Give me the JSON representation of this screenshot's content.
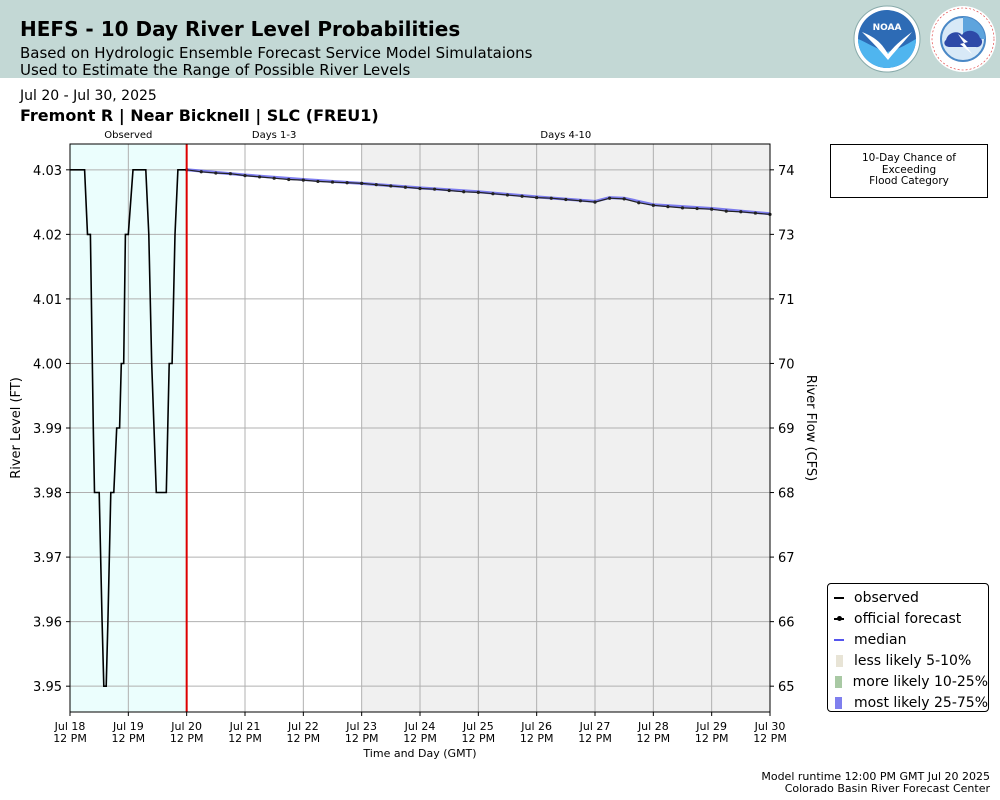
{
  "header": {
    "title": "HEFS - 10 Day River Level Probabilities",
    "subtitle_line1": "Based on Hydrologic Ensemble Forecast Service Model Simulataions",
    "subtitle_line2": "Used to Estimate the Range of Possible River Levels",
    "noaa_logo_text": "NOAA",
    "nws_logo_text": "NATIONAL WEATHER SERVICE"
  },
  "date_range": "Jul 20 - Jul 30, 2025",
  "station": "Fremont R | Near Bicknell | SLC (FREU1)",
  "chance_box": {
    "line1": "10-Day Chance of",
    "line2": "Exceeding",
    "line3": "Flood Category"
  },
  "footer": {
    "line1": "Model runtime 12:00 PM GMT Jul 20 2025",
    "line2": "Colorado Basin River Forecast Center"
  },
  "legend": [
    {
      "label": "observed",
      "color": "#000000",
      "kind": "line"
    },
    {
      "label": "official forecast",
      "color": "#000000",
      "kind": "line-dot"
    },
    {
      "label": "median",
      "color": "#5555ee",
      "kind": "line"
    },
    {
      "label": "less likely 5-10%",
      "color": "#e8e4d6",
      "kind": "patch"
    },
    {
      "label": "more likely 10-25%",
      "color": "#a9c9a4",
      "kind": "patch"
    },
    {
      "label": "most likely 25-75%",
      "color": "#7f7fee",
      "kind": "patch"
    }
  ],
  "colors": {
    "observed_bg": "#ebfefd",
    "days4_10_bg": "#f0f0f0",
    "now_line": "#dd0000",
    "grid": "#b0b0b0"
  },
  "chart_data": {
    "type": "line",
    "xlabel": "Time and Day (GMT)",
    "ylabel": "River Level (FT)",
    "y2label": "River Flow (CFS)",
    "x_range": [
      "2025-07-18 12:00",
      "2025-07-30 12:00"
    ],
    "ylim": [
      3.946,
      4.034
    ],
    "x_ticks": [
      {
        "day": "Jul 18",
        "time": "12 PM"
      },
      {
        "day": "Jul 19",
        "time": "12 PM"
      },
      {
        "day": "Jul 20",
        "time": "12 PM"
      },
      {
        "day": "Jul 21",
        "time": "12 PM"
      },
      {
        "day": "Jul 22",
        "time": "12 PM"
      },
      {
        "day": "Jul 23",
        "time": "12 PM"
      },
      {
        "day": "Jul 24",
        "time": "12 PM"
      },
      {
        "day": "Jul 25",
        "time": "12 PM"
      },
      {
        "day": "Jul 26",
        "time": "12 PM"
      },
      {
        "day": "Jul 27",
        "time": "12 PM"
      },
      {
        "day": "Jul 28",
        "time": "12 PM"
      },
      {
        "day": "Jul 29",
        "time": "12 PM"
      },
      {
        "day": "Jul 30",
        "time": "12 PM"
      }
    ],
    "y_ticks": [
      "3.95",
      "3.96",
      "3.97",
      "3.98",
      "3.99",
      "4.00",
      "4.01",
      "4.02",
      "4.03"
    ],
    "y2_ticks": [
      {
        "stage": 4.03,
        "label": "74"
      },
      {
        "stage": 4.02,
        "label": "73"
      },
      {
        "stage": 4.01,
        "label": "71"
      },
      {
        "stage": 4.0,
        "label": "70"
      },
      {
        "stage": 3.99,
        "label": "69"
      },
      {
        "stage": 3.98,
        "label": "68"
      },
      {
        "stage": 3.97,
        "label": "67"
      },
      {
        "stage": 3.96,
        "label": "66"
      },
      {
        "stage": 3.95,
        "label": "65"
      }
    ],
    "period_labels": [
      {
        "text": "Observed",
        "from": 0,
        "to": 2
      },
      {
        "text": "Days 1-3",
        "from": 2,
        "to": 5
      },
      {
        "text": "Days 4-10",
        "from": 5,
        "to": 12
      }
    ],
    "observed": [
      [
        0,
        4.03
      ],
      [
        0.25,
        4.03
      ],
      [
        0.3,
        4.02
      ],
      [
        0.35,
        4.02
      ],
      [
        0.4,
        3.99
      ],
      [
        0.42,
        3.98
      ],
      [
        0.5,
        3.98
      ],
      [
        0.55,
        3.96
      ],
      [
        0.58,
        3.95
      ],
      [
        0.62,
        3.95
      ],
      [
        0.65,
        3.96
      ],
      [
        0.7,
        3.98
      ],
      [
        0.75,
        3.98
      ],
      [
        0.8,
        3.99
      ],
      [
        0.85,
        3.99
      ],
      [
        0.88,
        4.0
      ],
      [
        0.92,
        4.0
      ],
      [
        0.95,
        4.02
      ],
      [
        1.0,
        4.02
      ],
      [
        1.08,
        4.03
      ],
      [
        1.3,
        4.03
      ],
      [
        1.35,
        4.02
      ],
      [
        1.4,
        4.0
      ],
      [
        1.48,
        3.98
      ],
      [
        1.55,
        3.98
      ],
      [
        1.65,
        3.98
      ],
      [
        1.7,
        4.0
      ],
      [
        1.75,
        4.0
      ],
      [
        1.8,
        4.02
      ],
      [
        1.85,
        4.03
      ],
      [
        2.0,
        4.03
      ]
    ],
    "forecast": [
      [
        2.0,
        4.03
      ],
      [
        2.25,
        4.0297
      ],
      [
        2.5,
        4.0295
      ],
      [
        2.75,
        4.0294
      ],
      [
        3.0,
        4.0291
      ],
      [
        3.25,
        4.0289
      ],
      [
        3.5,
        4.0287
      ],
      [
        3.75,
        4.0285
      ],
      [
        4.0,
        4.0284
      ],
      [
        4.25,
        4.0282
      ],
      [
        4.5,
        4.0281
      ],
      [
        4.75,
        4.028
      ],
      [
        5.0,
        4.0279
      ],
      [
        5.25,
        4.0277
      ],
      [
        5.5,
        4.0275
      ],
      [
        5.75,
        4.0273
      ],
      [
        6.0,
        4.0271
      ],
      [
        6.25,
        4.027
      ],
      [
        6.5,
        4.0268
      ],
      [
        6.75,
        4.0266
      ],
      [
        7.0,
        4.0265
      ],
      [
        7.25,
        4.0263
      ],
      [
        7.5,
        4.0261
      ],
      [
        7.75,
        4.0259
      ],
      [
        8.0,
        4.0257
      ],
      [
        8.25,
        4.0256
      ],
      [
        8.5,
        4.0254
      ],
      [
        8.75,
        4.0252
      ],
      [
        9.0,
        4.025
      ],
      [
        9.25,
        4.0256
      ],
      [
        9.5,
        4.0255
      ],
      [
        9.75,
        4.0249
      ],
      [
        10.0,
        4.0245
      ],
      [
        10.25,
        4.0243
      ],
      [
        10.5,
        4.0241
      ],
      [
        10.75,
        4.024
      ],
      [
        11.0,
        4.0239
      ],
      [
        11.25,
        4.0236
      ],
      [
        11.5,
        4.0235
      ],
      [
        11.75,
        4.0233
      ],
      [
        12.0,
        4.0231
      ]
    ],
    "median": [
      [
        2.0,
        4.03
      ],
      [
        3.0,
        4.0292
      ],
      [
        4.0,
        4.0285
      ],
      [
        5.0,
        4.0279
      ],
      [
        6.0,
        4.0272
      ],
      [
        7.0,
        4.0266
      ],
      [
        8.0,
        4.0258
      ],
      [
        9.0,
        4.0251
      ],
      [
        9.25,
        4.0257
      ],
      [
        9.5,
        4.0256
      ],
      [
        10.0,
        4.0246
      ],
      [
        11.0,
        4.024
      ],
      [
        12.0,
        4.0232
      ]
    ]
  }
}
